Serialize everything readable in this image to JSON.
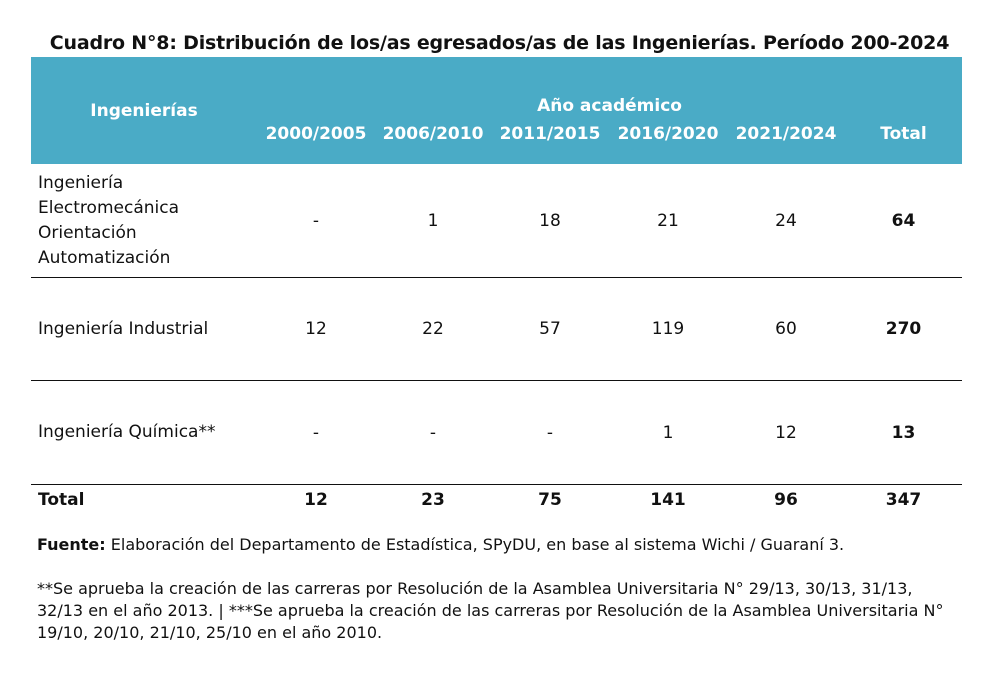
{
  "title": "Cuadro N°8: Distribución de los/as egresados/as de las Ingenierías. Período 200-2024",
  "header": {
    "row_label": "Ingenierías",
    "group_label": "Año académico",
    "columns": [
      "2000/2005",
      "2006/2010",
      "2011/2015",
      "2016/2020",
      "2021/2024",
      "Total"
    ]
  },
  "rows": [
    {
      "name_lines": [
        "Ingeniería",
        "Electromecánica",
        "Orientación",
        "Automatización"
      ],
      "values": [
        "-",
        "1",
        "18",
        "21",
        "24",
        "64"
      ]
    },
    {
      "name_lines": [
        "Ingeniería Industrial"
      ],
      "values": [
        "12",
        "22",
        "57",
        "119",
        "60",
        "270"
      ]
    },
    {
      "name_lines": [
        "Ingeniería Química**"
      ],
      "values": [
        "-",
        "-",
        "-",
        "1",
        "12",
        "13"
      ]
    }
  ],
  "total": {
    "label": "Total",
    "values": [
      "12",
      "23",
      "75",
      "141",
      "96",
      "347"
    ]
  },
  "source": {
    "label": "Fuente:",
    "text": "Elaboración del Departamento de Estadística, SPyDU, en base al sistema Wichi / Guaraní 3."
  },
  "footnote": "**Se aprueba la creación de las carreras por Resolución de la Asamblea Universitaria N° 29/13, 30/13, 31/13, 32/13 en el año 2013. | ***Se aprueba la creación de las carreras por Resolución de la Asamblea Universitaria N° 19/10, 20/10, 21/10, 25/10 en el año 2010."
}
